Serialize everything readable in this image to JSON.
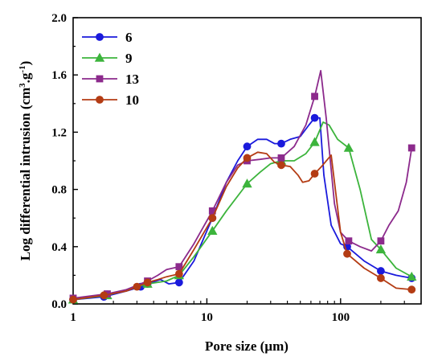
{
  "chart_data": {
    "type": "line",
    "xlabel": "Pore  size (µm)",
    "ylabel_parts": [
      "Log differential intrusion (cm",
      "3",
      ".g",
      "-1",
      ")"
    ],
    "x_scale": "log",
    "xlim": [
      1,
      400
    ],
    "ylim": [
      0,
      2.0
    ],
    "x_ticks": [
      1,
      10,
      100
    ],
    "x_tick_labels": [
      "1",
      "10",
      "100"
    ],
    "y_ticks": [
      0,
      0.4,
      0.8,
      1.2,
      1.6,
      2.0
    ],
    "y_tick_labels": [
      "0.0",
      "0.4",
      "0.8",
      "1.2",
      "1.6",
      "2.0"
    ],
    "grid": false,
    "legend": "top-left",
    "series": [
      {
        "name": "6",
        "color": "#1a1adc",
        "marker": "circle",
        "curve": [
          [
            1,
            0.03
          ],
          [
            1.7,
            0.05
          ],
          [
            2.5,
            0.09
          ],
          [
            3.2,
            0.12
          ],
          [
            3.6,
            0.14
          ],
          [
            4.5,
            0.17
          ],
          [
            5.2,
            0.14
          ],
          [
            6.2,
            0.15
          ],
          [
            8,
            0.3
          ],
          [
            11,
            0.6
          ],
          [
            14,
            0.85
          ],
          [
            17,
            1.0
          ],
          [
            20,
            1.1
          ],
          [
            24,
            1.15
          ],
          [
            28,
            1.15
          ],
          [
            32,
            1.12
          ],
          [
            36,
            1.12
          ],
          [
            42,
            1.15
          ],
          [
            50,
            1.17
          ],
          [
            58,
            1.25
          ],
          [
            64,
            1.3
          ],
          [
            70,
            1.3
          ],
          [
            75,
            0.9
          ],
          [
            85,
            0.55
          ],
          [
            100,
            0.42
          ],
          [
            112,
            0.4
          ],
          [
            150,
            0.3
          ],
          [
            200,
            0.23
          ],
          [
            260,
            0.2
          ],
          [
            340,
            0.18
          ]
        ],
        "markers": [
          [
            1,
            0.03
          ],
          [
            1.7,
            0.05
          ],
          [
            3.2,
            0.12
          ],
          [
            3.6,
            0.14
          ],
          [
            6.2,
            0.15
          ],
          [
            11,
            0.6
          ],
          [
            20,
            1.1
          ],
          [
            36,
            1.12
          ],
          [
            64,
            1.3
          ],
          [
            112,
            0.4
          ],
          [
            200,
            0.23
          ],
          [
            340,
            0.18
          ]
        ]
      },
      {
        "name": "9",
        "color": "#3cb43c",
        "marker": "triangle",
        "curve": [
          [
            1,
            0.03
          ],
          [
            1.8,
            0.06
          ],
          [
            3,
            0.12
          ],
          [
            3.6,
            0.14
          ],
          [
            5,
            0.16
          ],
          [
            6.2,
            0.2
          ],
          [
            8,
            0.33
          ],
          [
            11,
            0.51
          ],
          [
            14,
            0.65
          ],
          [
            20,
            0.84
          ],
          [
            25,
            0.92
          ],
          [
            30,
            0.98
          ],
          [
            36,
            1.0
          ],
          [
            45,
            1.0
          ],
          [
            55,
            1.05
          ],
          [
            64,
            1.13
          ],
          [
            74,
            1.27
          ],
          [
            82,
            1.25
          ],
          [
            95,
            1.15
          ],
          [
            115,
            1.09
          ],
          [
            140,
            0.8
          ],
          [
            170,
            0.45
          ],
          [
            200,
            0.38
          ],
          [
            260,
            0.25
          ],
          [
            340,
            0.19
          ]
        ],
        "markers": [
          [
            1,
            0.03
          ],
          [
            1.8,
            0.06
          ],
          [
            3.6,
            0.14
          ],
          [
            6.2,
            0.2
          ],
          [
            11,
            0.51
          ],
          [
            20,
            0.84
          ],
          [
            36,
            1.0
          ],
          [
            64,
            1.13
          ],
          [
            115,
            1.09
          ],
          [
            200,
            0.38
          ],
          [
            340,
            0.19
          ]
        ]
      },
      {
        "name": "13",
        "color": "#8c2a8c",
        "marker": "square",
        "curve": [
          [
            1,
            0.04
          ],
          [
            1.8,
            0.07
          ],
          [
            2.5,
            0.1
          ],
          [
            3,
            0.13
          ],
          [
            3.6,
            0.16
          ],
          [
            4.3,
            0.2
          ],
          [
            5,
            0.24
          ],
          [
            6.2,
            0.26
          ],
          [
            8,
            0.42
          ],
          [
            11,
            0.65
          ],
          [
            14,
            0.85
          ],
          [
            17,
            0.97
          ],
          [
            20,
            1.0
          ],
          [
            25,
            1.01
          ],
          [
            30,
            1.02
          ],
          [
            36,
            1.02
          ],
          [
            45,
            1.1
          ],
          [
            55,
            1.25
          ],
          [
            64,
            1.45
          ],
          [
            71,
            1.63
          ],
          [
            78,
            1.3
          ],
          [
            90,
            0.7
          ],
          [
            100,
            0.5
          ],
          [
            115,
            0.44
          ],
          [
            140,
            0.4
          ],
          [
            170,
            0.37
          ],
          [
            200,
            0.44
          ],
          [
            230,
            0.55
          ],
          [
            270,
            0.65
          ],
          [
            310,
            0.85
          ],
          [
            340,
            1.09
          ]
        ],
        "markers": [
          [
            1,
            0.04
          ],
          [
            1.8,
            0.07
          ],
          [
            3.6,
            0.16
          ],
          [
            6.2,
            0.26
          ],
          [
            11,
            0.65
          ],
          [
            20,
            1.0
          ],
          [
            36,
            1.02
          ],
          [
            64,
            1.45
          ],
          [
            115,
            0.44
          ],
          [
            200,
            0.44
          ],
          [
            340,
            1.09
          ]
        ]
      },
      {
        "name": "10",
        "color": "#b43c14",
        "marker": "circle",
        "curve": [
          [
            1,
            0.03
          ],
          [
            1.7,
            0.06
          ],
          [
            2.5,
            0.09
          ],
          [
            3,
            0.12
          ],
          [
            3.6,
            0.15
          ],
          [
            4.3,
            0.17
          ],
          [
            5,
            0.19
          ],
          [
            6.2,
            0.21
          ],
          [
            8,
            0.38
          ],
          [
            11,
            0.6
          ],
          [
            14,
            0.82
          ],
          [
            17,
            0.95
          ],
          [
            20,
            1.02
          ],
          [
            24,
            1.06
          ],
          [
            28,
            1.05
          ],
          [
            32,
            0.99
          ],
          [
            36,
            0.97
          ],
          [
            42,
            0.96
          ],
          [
            48,
            0.9
          ],
          [
            52,
            0.85
          ],
          [
            58,
            0.86
          ],
          [
            64,
            0.91
          ],
          [
            72,
            0.96
          ],
          [
            85,
            1.04
          ],
          [
            100,
            0.5
          ],
          [
            112,
            0.35
          ],
          [
            150,
            0.25
          ],
          [
            200,
            0.18
          ],
          [
            260,
            0.11
          ],
          [
            340,
            0.1
          ]
        ],
        "markers": [
          [
            1,
            0.03
          ],
          [
            1.7,
            0.06
          ],
          [
            3,
            0.12
          ],
          [
            3.6,
            0.15
          ],
          [
            6.2,
            0.21
          ],
          [
            11,
            0.6
          ],
          [
            20,
            1.02
          ],
          [
            36,
            0.97
          ],
          [
            64,
            0.91
          ],
          [
            112,
            0.35
          ],
          [
            200,
            0.18
          ],
          [
            340,
            0.1
          ]
        ]
      }
    ]
  }
}
